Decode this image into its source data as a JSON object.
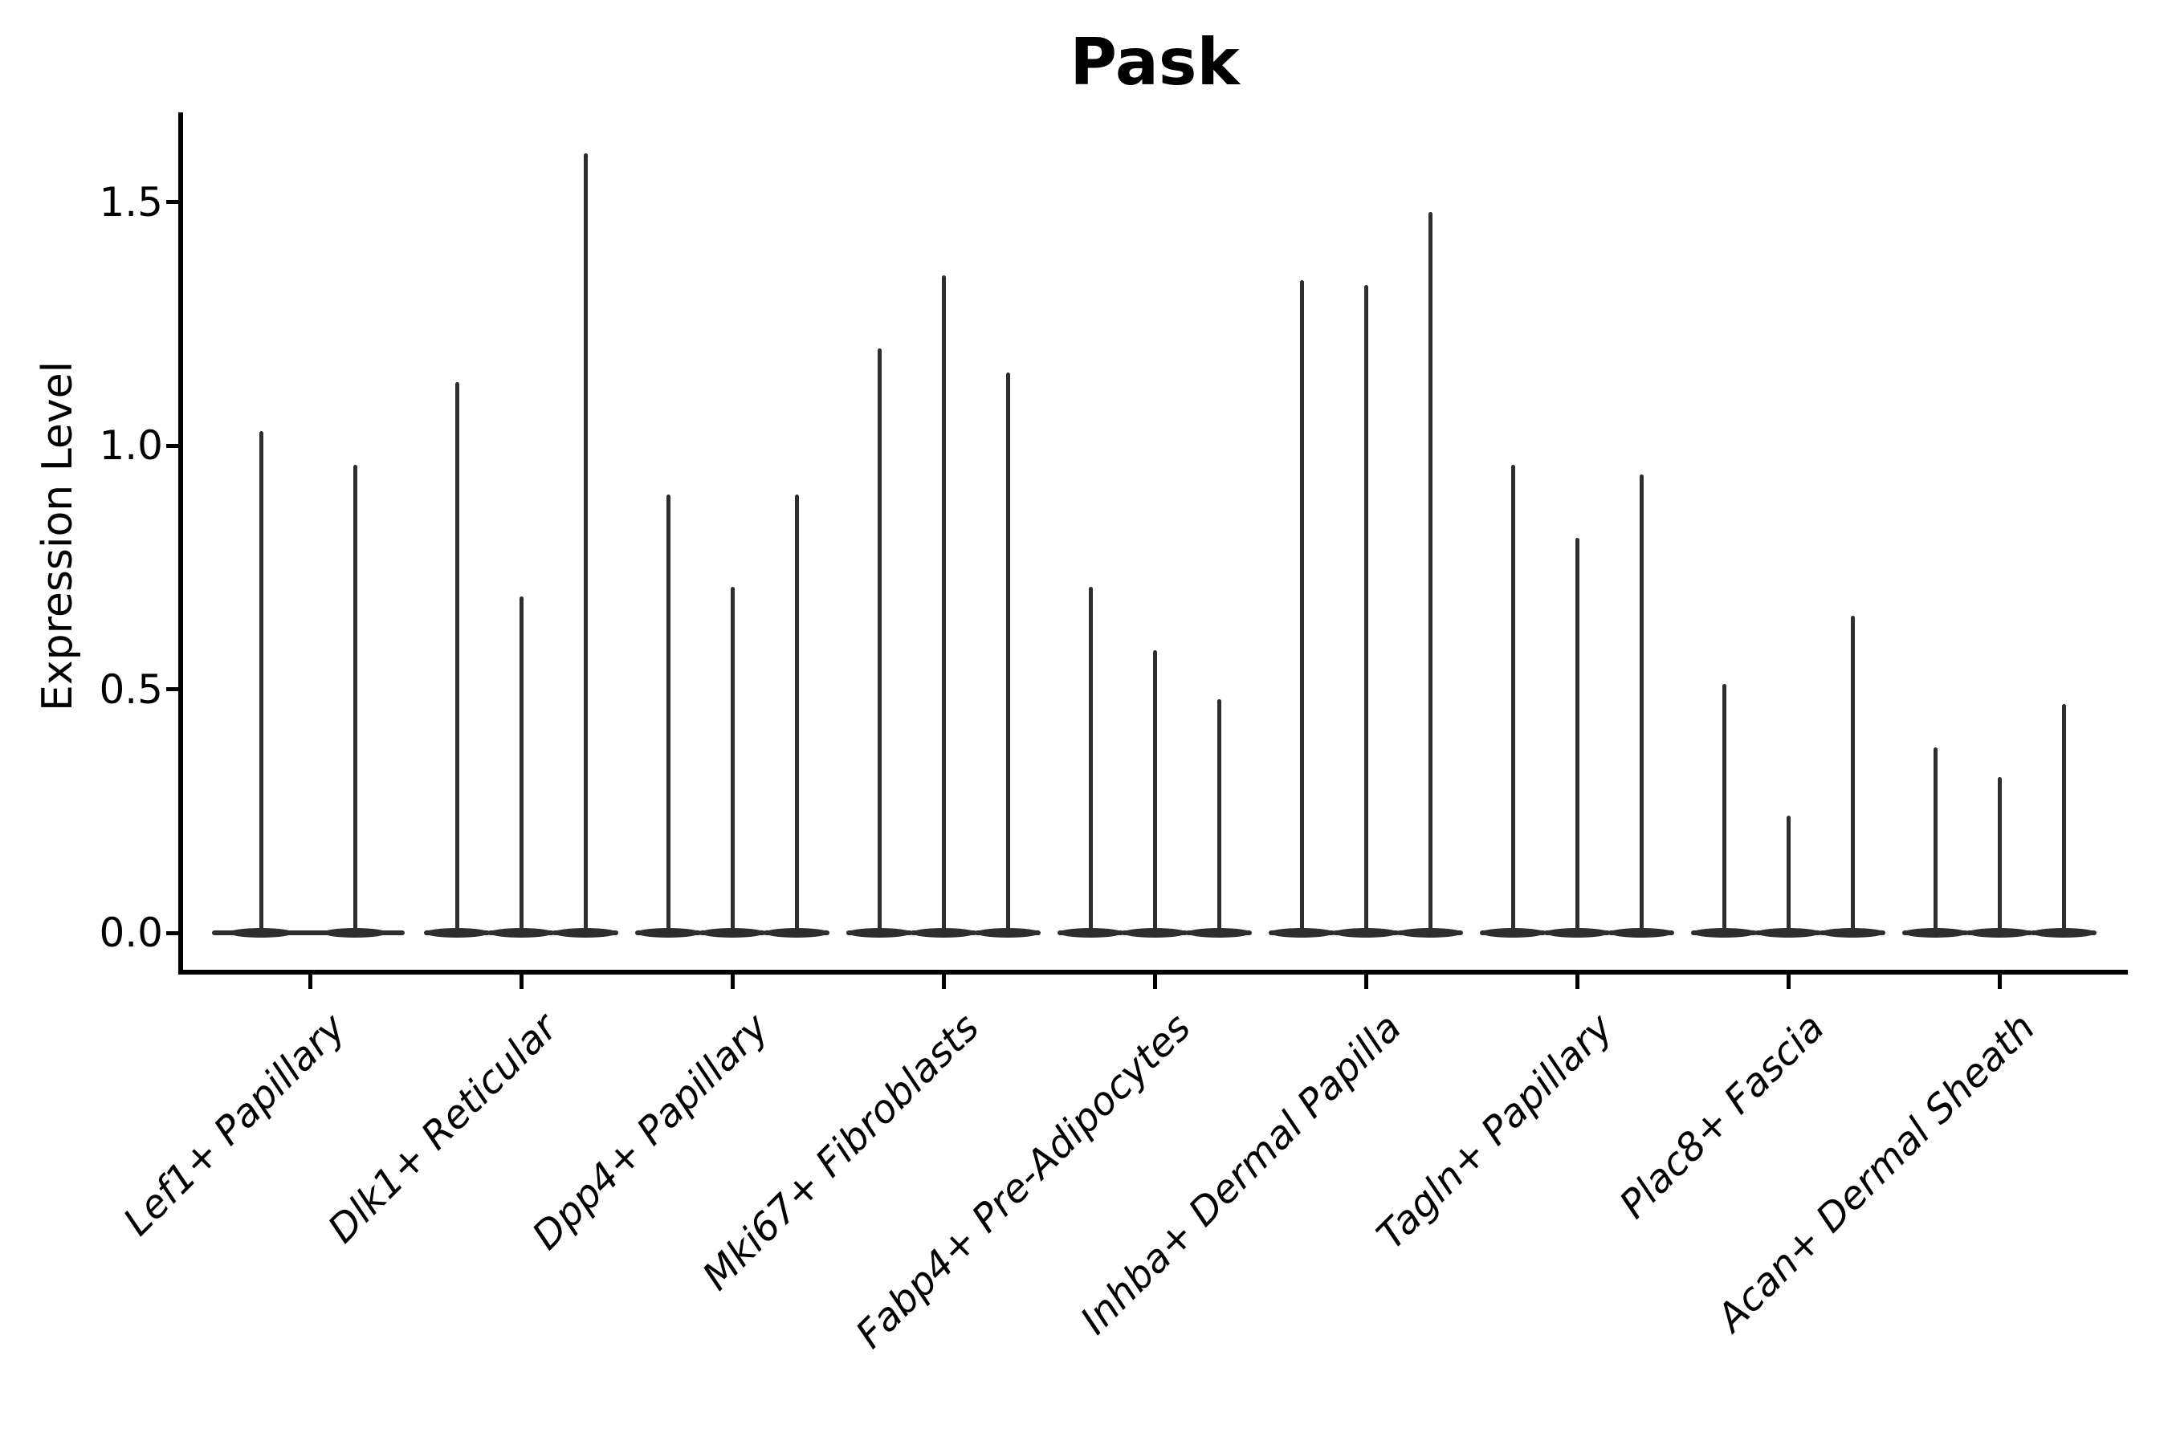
{
  "title": "Pask",
  "axes": {
    "ylabel": "Expression Level",
    "ytick_labels": [
      "0.0",
      "0.5",
      "1.0",
      "1.5"
    ]
  },
  "chart_data": {
    "type": "violin",
    "title": "Pask",
    "xlabel": "",
    "ylabel": "Expression Level",
    "ylim": [
      -0.08,
      1.68
    ],
    "yticks": [
      0.0,
      0.5,
      1.0,
      1.5
    ],
    "grid": false,
    "legend": "none",
    "description": "Needle-thin expression violin plot; each category shows 2-3 dodged violins collapsed at 0 with thin spikes up to the max expression value.",
    "categories": [
      "Lef1+ Papillary",
      "Dlk1+ Reticular",
      "Dpp4+ Papillary",
      "Mki67+ Fibroblasts",
      "Fabp4+ Pre-Adipocytes",
      "Inhba+ Dermal Papilla",
      "Tagln+ Papillary",
      "Plac8+ Fascia",
      "Acan+ Dermal Sheath"
    ],
    "series": [
      {
        "category": "Lef1+ Papillary",
        "violins": [
          {
            "offset": -61,
            "max": 1.03
          },
          {
            "offset": 56,
            "max": 0.96
          }
        ]
      },
      {
        "category": "Dlk1+ Reticular",
        "violins": [
          {
            "offset": -80,
            "max": 1.13
          },
          {
            "offset": 0,
            "max": 0.69
          },
          {
            "offset": 80,
            "max": 1.6
          }
        ]
      },
      {
        "category": "Dpp4+ Papillary",
        "violins": [
          {
            "offset": -80,
            "max": 0.9
          },
          {
            "offset": 0,
            "max": 0.71
          },
          {
            "offset": 80,
            "max": 0.9
          }
        ]
      },
      {
        "category": "Mki67+ Fibroblasts",
        "violins": [
          {
            "offset": -80,
            "max": 1.2
          },
          {
            "offset": 0,
            "max": 1.35
          },
          {
            "offset": 80,
            "max": 1.15
          }
        ]
      },
      {
        "category": "Fabp4+ Pre-Adipocytes",
        "violins": [
          {
            "offset": -80,
            "max": 0.71
          },
          {
            "offset": 0,
            "max": 0.58
          },
          {
            "offset": 80,
            "max": 0.48
          }
        ]
      },
      {
        "category": "Inhba+ Dermal Papilla",
        "violins": [
          {
            "offset": -80,
            "max": 1.34
          },
          {
            "offset": 0,
            "max": 1.33
          },
          {
            "offset": 80,
            "max": 1.48
          }
        ]
      },
      {
        "category": "Tagln+ Papillary",
        "violins": [
          {
            "offset": -80,
            "max": 0.96
          },
          {
            "offset": 0,
            "max": 0.81
          },
          {
            "offset": 80,
            "max": 0.94
          }
        ]
      },
      {
        "category": "Plac8+ Fascia",
        "violins": [
          {
            "offset": -80,
            "max": 0.51
          },
          {
            "offset": 0,
            "max": 0.24
          },
          {
            "offset": 80,
            "max": 0.65
          }
        ]
      },
      {
        "category": "Acan+ Dermal Sheath",
        "violins": [
          {
            "offset": -80,
            "max": 0.38
          },
          {
            "offset": 0,
            "max": 0.32
          },
          {
            "offset": 80,
            "max": 0.47
          }
        ]
      }
    ],
    "style": {
      "violin_color": "#2e2e2e",
      "spine_color": "#000000",
      "text_color": "#000000",
      "background": "#ffffff"
    }
  }
}
